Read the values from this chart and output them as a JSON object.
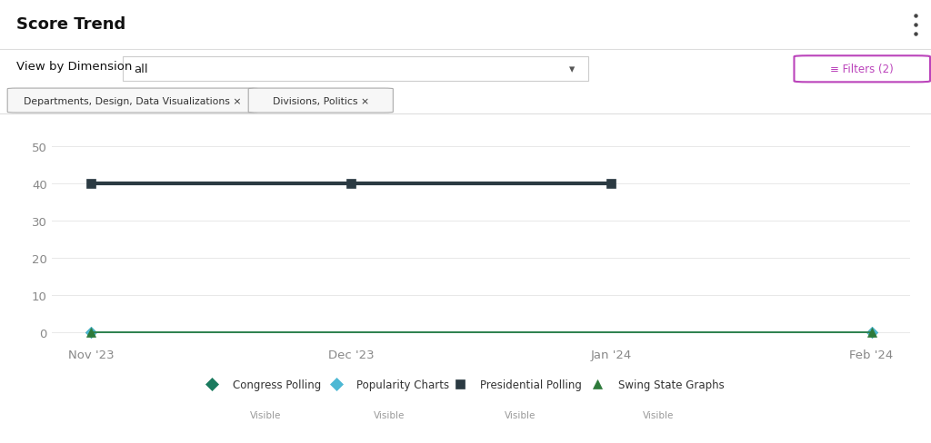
{
  "title": "Score Trend",
  "bg_color": "#ffffff",
  "view_label": "View by Dimension",
  "dropdown_value": "all",
  "filter_button_text": "≡ Filters (2)",
  "filter_button_color": "#bb44bb",
  "chips": [
    "Departments, Design, Data Visualizations ×",
    "Divisions, Politics ×"
  ],
  "x_labels": [
    "Nov '23",
    "Dec '23",
    "Jan '24",
    "Feb '24"
  ],
  "x_values": [
    0,
    1,
    2,
    3
  ],
  "yticks": [
    0,
    10,
    20,
    30,
    40,
    50
  ],
  "ylim": [
    -3,
    57
  ],
  "series": [
    {
      "name": "Congress Polling",
      "sub": "Visible",
      "x": [
        0,
        3
      ],
      "y": [
        0,
        0
      ],
      "color": "#1a7a5e",
      "marker": "D",
      "markersize": 6,
      "linewidth": 1.2,
      "linestyle": "-",
      "legend_marker": "D"
    },
    {
      "name": "Popularity Charts",
      "sub": "Visible",
      "x": [
        0,
        3
      ],
      "y": [
        0,
        0
      ],
      "color": "#4db8d4",
      "marker": "D",
      "markersize": 6,
      "linewidth": 1.2,
      "linestyle": "-",
      "legend_marker": "D"
    },
    {
      "name": "Presidential Polling",
      "sub": "Visible",
      "x": [
        0,
        1,
        2
      ],
      "y": [
        40,
        40,
        40
      ],
      "color": "#2b3a42",
      "marker": "s",
      "markersize": 7,
      "linewidth": 3.0,
      "linestyle": "-",
      "legend_marker": "s"
    },
    {
      "name": "Swing State Graphs",
      "sub": "Visible",
      "x": [
        0,
        3
      ],
      "y": [
        0,
        0
      ],
      "color": "#2d7a3a",
      "marker": "^",
      "markersize": 7,
      "linewidth": 1.2,
      "linestyle": "-",
      "legend_marker": "^"
    }
  ],
  "grid_color": "#e8e8e8",
  "tick_color": "#888888",
  "tick_fontsize": 9.5,
  "legend_fontsize": 8.5,
  "legend_sub_fontsize": 7.5,
  "legend_sub_color": "#999999",
  "separator_color": "#dddddd"
}
